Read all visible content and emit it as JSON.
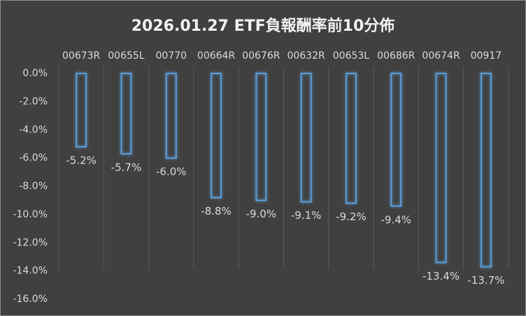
{
  "chart_data": {
    "type": "bar",
    "title": "2026.01.27 ETF負報酬率前10分佈",
    "categories": [
      "00673R",
      "00655L",
      "00770",
      "00664R",
      "00676R",
      "00632R",
      "00653L",
      "00686R",
      "00674R",
      "00917"
    ],
    "values": [
      -5.2,
      -5.7,
      -6.0,
      -8.8,
      -9.0,
      -9.1,
      -9.2,
      -9.4,
      -13.4,
      -13.7
    ],
    "value_labels": [
      "-5.2%",
      "-5.7%",
      "-6.0%",
      "-8.8%",
      "-9.0%",
      "-9.1%",
      "-9.2%",
      "-9.4%",
      "-13.4%",
      "-13.7%"
    ],
    "color": "#5b9bd5",
    "ylim": [
      -16,
      0
    ],
    "yticks": [
      {
        "value": 0,
        "label": "0.0%"
      },
      {
        "value": -2,
        "label": "-2.0%"
      },
      {
        "value": -4,
        "label": "-4.0%"
      },
      {
        "value": -6,
        "label": "-6.0%"
      },
      {
        "value": -8,
        "label": "-8.0%"
      },
      {
        "value": -10,
        "label": "-10.0%"
      },
      {
        "value": -12,
        "label": "-12.0%"
      },
      {
        "value": -14,
        "label": "-14.0%"
      },
      {
        "value": -16,
        "label": "-16.0%"
      }
    ],
    "grid": true
  }
}
